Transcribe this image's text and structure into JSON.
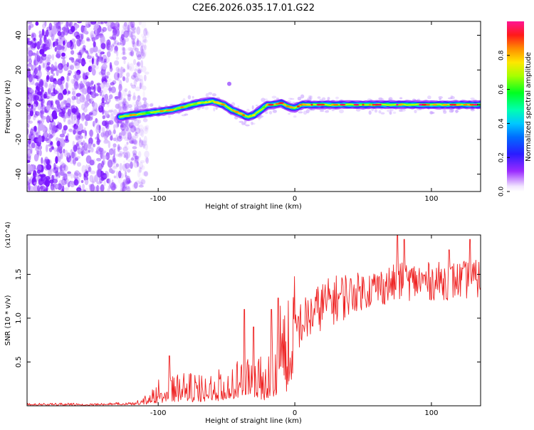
{
  "title": "C2E6.2026.035.17.01.G22",
  "colors": {
    "snr_line": "#ee2222",
    "axis": "#000000",
    "background": "#ffffff"
  },
  "chart_data": [
    {
      "type": "heatmap",
      "title": "C2E6.2026.035.17.01.G22",
      "xlabel": "Height of straight line (km)",
      "ylabel": "Frequency (Hz)",
      "xlim": [
        -196,
        136
      ],
      "ylim": [
        -50,
        48
      ],
      "xticks": [
        -100,
        0,
        100
      ],
      "xtick_labels": [
        "-100",
        "0",
        "100"
      ],
      "yticks": [
        -40,
        -20,
        0,
        20,
        40
      ],
      "ytick_labels": [
        "-40",
        "-20",
        "0",
        "20",
        "40"
      ],
      "colorbar": {
        "label": "Normalized spectral amplitude",
        "range": [
          0,
          1
        ],
        "ticks": [
          0.0,
          0.2,
          0.4,
          0.6,
          0.8
        ],
        "tick_labels": [
          "0.0",
          "0.2",
          "0.4",
          "0.6",
          "0.8"
        ]
      },
      "ridge": {
        "description": "spectral ridge frequency vs height",
        "x": [
          -128,
          -120,
          -110,
          -100,
          -90,
          -80,
          -70,
          -60,
          -52,
          -46,
          -40,
          -35,
          -30,
          -25,
          -20,
          -15,
          -10,
          -5,
          0,
          5,
          10,
          20,
          40,
          60,
          80,
          100,
          120,
          136
        ],
        "y": [
          -7,
          -6,
          -5,
          -4,
          -3,
          -1,
          1,
          2,
          0,
          -3,
          -5,
          -7,
          -6,
          -3,
          0,
          0,
          1,
          -1,
          -2,
          0,
          0,
          0,
          0,
          0,
          0,
          0,
          0,
          0
        ]
      }
    },
    {
      "type": "line",
      "xlabel": "Height of straight line (km)",
      "ylabel": "SNR (10 * v/v)",
      "y_multiplier": "(x10^4)",
      "xlim": [
        -196,
        136
      ],
      "ylim": [
        0,
        1.95
      ],
      "xticks": [
        -100,
        0,
        100
      ],
      "xtick_labels": [
        "-100",
        "0",
        "100"
      ],
      "yticks": [
        0.5,
        1.0,
        1.5
      ],
      "ytick_labels": [
        "0.5",
        "1.0",
        "1.5"
      ],
      "series": [
        {
          "name": "SNR",
          "envelope_x": [
            -196,
            -150,
            -120,
            -105,
            -100,
            -90,
            -80,
            -70,
            -60,
            -50,
            -40,
            -30,
            -25,
            -20,
            -15,
            -10,
            -5,
            0,
            10,
            20,
            40,
            60,
            80,
            100,
            120,
            136
          ],
          "envelope_y": [
            0.02,
            0.02,
            0.03,
            0.1,
            0.18,
            0.2,
            0.22,
            0.2,
            0.22,
            0.26,
            0.3,
            0.35,
            0.32,
            0.3,
            0.55,
            0.72,
            0.8,
            0.88,
            1.0,
            1.15,
            1.28,
            1.35,
            1.42,
            1.42,
            1.43,
            1.45
          ],
          "peaks_x": [
            -92,
            -37,
            -30,
            -17,
            -12,
            75,
            80,
            113,
            128
          ],
          "peaks_y": [
            0.57,
            1.1,
            0.9,
            1.1,
            1.23,
            1.95,
            1.9,
            1.78,
            1.9
          ]
        }
      ]
    }
  ]
}
